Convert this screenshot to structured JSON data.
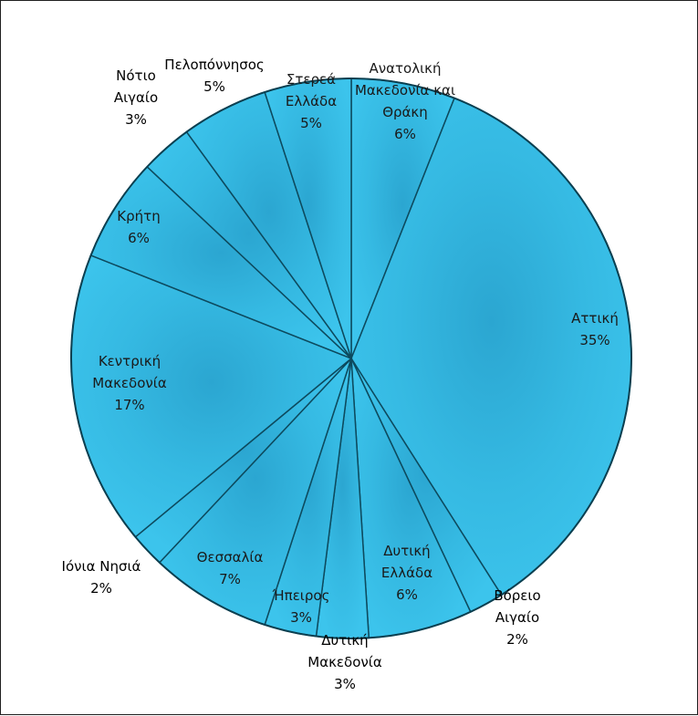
{
  "chart_data": {
    "type": "pie",
    "title": "",
    "slices": [
      {
        "label": "Ανατολική Μακεδονία και Θράκη",
        "label_lines": [
          "Ανατολική",
          "Μακεδονία και",
          "Θράκη"
        ],
        "value": 6,
        "value_label": "6%"
      },
      {
        "label": "Αττική",
        "label_lines": [
          "Αττική"
        ],
        "value": 35,
        "value_label": "35%"
      },
      {
        "label": "Βόρειο Αιγαίο",
        "label_lines": [
          "Βόρειο",
          "Αιγαίο"
        ],
        "value": 2,
        "value_label": "2%"
      },
      {
        "label": "Δυτική Ελλάδα",
        "label_lines": [
          "Δυτική",
          "Ελλάδα"
        ],
        "value": 6,
        "value_label": "6%"
      },
      {
        "label": "Δυτική Μακεδονία",
        "label_lines": [
          "Δυτική",
          "Μακεδονία"
        ],
        "value": 3,
        "value_label": "3%"
      },
      {
        "label": "Ήπειρος",
        "label_lines": [
          "Ήπειρος"
        ],
        "value": 3,
        "value_label": "3%"
      },
      {
        "label": "Θεσσαλία",
        "label_lines": [
          "Θεσσαλία"
        ],
        "value": 7,
        "value_label": "7%"
      },
      {
        "label": "Ιόνια Νησιά",
        "label_lines": [
          "Ιόνια Νησιά"
        ],
        "value": 2,
        "value_label": "2%"
      },
      {
        "label": "Κεντρική Μακεδονία",
        "label_lines": [
          "Κεντρική",
          "Μακεδονία"
        ],
        "value": 17,
        "value_label": "17%"
      },
      {
        "label": "Κρήτη",
        "label_lines": [
          "Κρήτη"
        ],
        "value": 6,
        "value_label": "6%"
      },
      {
        "label": "Νότιο Αιγαίο",
        "label_lines": [
          "Νότιο",
          "Αιγαίο"
        ],
        "value": 3,
        "value_label": "3%"
      },
      {
        "label": "Πελοπόννησος",
        "label_lines": [
          "Πελοπόννησος"
        ],
        "value": 5,
        "value_label": "5%"
      },
      {
        "label": "Στερεά Ελλάδα",
        "label_lines": [
          "Στερεά",
          "Ελλάδα"
        ],
        "value": 5,
        "value_label": "5%"
      }
    ],
    "start": "12 o'clock",
    "direction": "clockwise",
    "colors": {
      "fill": "#29b3dd",
      "fill_light": "#5fcdef",
      "fill_dark": "#1d8fb4",
      "separator": "#0d4a5e",
      "outline": "#0b3f50"
    },
    "legend": "none"
  }
}
